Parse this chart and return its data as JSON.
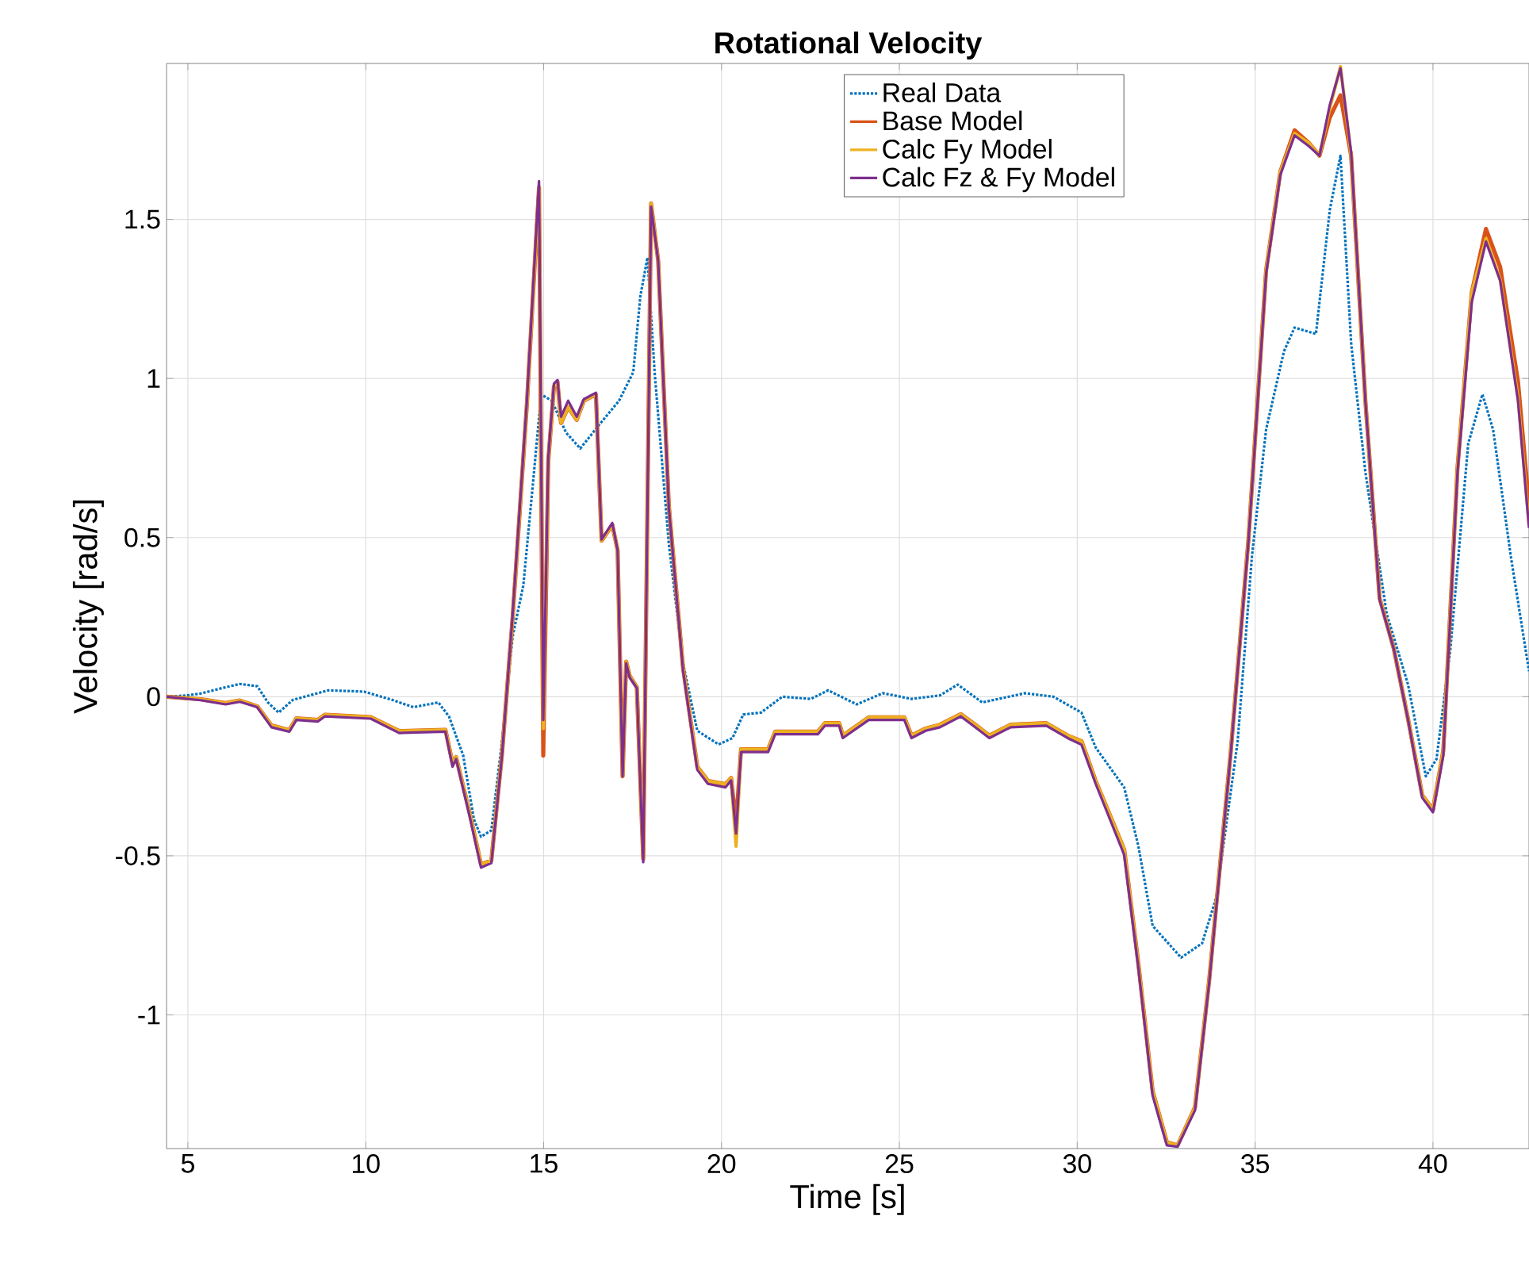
{
  "chart_data": {
    "type": "line",
    "title": "Rotational Velocity",
    "xlabel": "Time [s]",
    "ylabel": "Velocity [rad/s]",
    "xlim": [
      4.4,
      42.7
    ],
    "ylim": [
      -1.42,
      1.99
    ],
    "xticks": [
      5,
      10,
      15,
      20,
      25,
      30,
      35,
      40
    ],
    "yticks": [
      -1,
      -0.5,
      0,
      0.5,
      1,
      1.5
    ],
    "grid": true,
    "legend": "top",
    "series": [
      {
        "name": "Real Data",
        "color": "#0072bd",
        "line_style": "dotted",
        "x": [
          4.4,
          4.96,
          5.36,
          5.96,
          6.46,
          6.95,
          7.25,
          7.55,
          7.95,
          8.95,
          9.95,
          10.74,
          11.34,
          12.04,
          12.34,
          12.74,
          13.04,
          13.24,
          13.53,
          13.83,
          14.13,
          14.43,
          14.73,
          14.93,
          15.23,
          15.63,
          16.03,
          16.53,
          17.12,
          17.52,
          17.72,
          17.92,
          18.12,
          18.52,
          18.92,
          19.32,
          19.92,
          20.31,
          20.61,
          21.11,
          21.71,
          22.51,
          23.0,
          23.8,
          24.54,
          25.34,
          26.14,
          26.64,
          27.33,
          28.53,
          29.33,
          30.12,
          30.52,
          31.32,
          31.72,
          32.12,
          32.92,
          33.51,
          33.91,
          34.51,
          34.91,
          35.31,
          35.81,
          36.11,
          36.71,
          37.1,
          37.4,
          37.7,
          38.1,
          38.7,
          39.3,
          39.8,
          40.1,
          40.49,
          40.99,
          41.39,
          41.69,
          42.19,
          42.7
        ],
        "values": [
          0,
          0.004,
          0.01,
          0.027,
          0.04,
          0.033,
          -0.018,
          -0.05,
          -0.01,
          0.02,
          0.016,
          -0.01,
          -0.033,
          -0.018,
          -0.062,
          -0.185,
          -0.385,
          -0.44,
          -0.42,
          -0.14,
          0.19,
          0.35,
          0.706,
          0.95,
          0.93,
          0.83,
          0.78,
          0.85,
          0.93,
          1.02,
          1.26,
          1.38,
          1.02,
          0.48,
          0.105,
          -0.107,
          -0.15,
          -0.13,
          -0.056,
          -0.05,
          0,
          -0.007,
          0.02,
          -0.024,
          0.011,
          -0.007,
          0.004,
          0.038,
          -0.018,
          0.011,
          0,
          -0.05,
          -0.16,
          -0.285,
          -0.47,
          -0.72,
          -0.82,
          -0.775,
          -0.63,
          -0.14,
          0.44,
          0.84,
          1.085,
          1.16,
          1.14,
          1.53,
          1.7,
          1.11,
          0.706,
          0.26,
          0.038,
          -0.25,
          -0.196,
          0.15,
          0.795,
          0.95,
          0.84,
          0.44,
          0.08
        ]
      },
      {
        "name": "Base Model",
        "color": "#d95319",
        "line_style": "solid",
        "x": [
          4.4,
          5.36,
          6.06,
          6.46,
          6.95,
          7.35,
          7.85,
          8.05,
          8.65,
          8.85,
          10.14,
          10.94,
          12.24,
          12.44,
          12.54,
          12.94,
          13.24,
          13.53,
          13.83,
          14.13,
          14.53,
          14.87,
          14.99,
          15.13,
          15.29,
          15.39,
          15.49,
          15.69,
          15.93,
          16.13,
          16.47,
          16.63,
          16.93,
          17.08,
          17.22,
          17.32,
          17.42,
          17.62,
          17.8,
          18.02,
          18.22,
          18.52,
          18.92,
          19.32,
          19.62,
          20.11,
          20.27,
          20.41,
          20.55,
          21.31,
          21.51,
          22.71,
          22.91,
          23.31,
          23.41,
          24.14,
          25.14,
          25.34,
          25.74,
          26.14,
          26.73,
          27.13,
          27.53,
          28.13,
          29.13,
          29.73,
          30.12,
          30.52,
          31.32,
          31.72,
          32.12,
          32.52,
          32.82,
          33.31,
          33.71,
          34.31,
          34.81,
          35.31,
          35.71,
          36.11,
          36.51,
          36.81,
          37.1,
          37.4,
          37.7,
          38.1,
          38.5,
          38.9,
          39.3,
          39.7,
          40.0,
          40.29,
          40.69,
          41.09,
          41.49,
          41.89,
          42.39,
          42.7
        ],
        "values": [
          0,
          -0.008,
          -0.02,
          -0.012,
          -0.03,
          -0.09,
          -0.105,
          -0.068,
          -0.073,
          -0.057,
          -0.064,
          -0.108,
          -0.104,
          -0.21,
          -0.19,
          -0.375,
          -0.527,
          -0.515,
          -0.18,
          0.25,
          0.92,
          1.6,
          -0.185,
          0.74,
          0.975,
          0.99,
          0.86,
          0.91,
          0.87,
          0.93,
          0.95,
          0.49,
          0.54,
          0.46,
          -0.25,
          0.11,
          0.065,
          0.03,
          -0.51,
          1.55,
          1.37,
          0.6,
          0.09,
          -0.22,
          -0.265,
          -0.275,
          -0.255,
          -0.4,
          -0.165,
          -0.165,
          -0.11,
          -0.11,
          -0.083,
          -0.083,
          -0.122,
          -0.065,
          -0.065,
          -0.122,
          -0.1,
          -0.088,
          -0.055,
          -0.088,
          -0.122,
          -0.088,
          -0.083,
          -0.122,
          -0.14,
          -0.265,
          -0.48,
          -0.84,
          -1.24,
          -1.4,
          -1.41,
          -1.29,
          -0.89,
          -0.18,
          0.49,
          1.34,
          1.65,
          1.78,
          1.74,
          1.7,
          1.82,
          1.89,
          1.7,
          0.93,
          0.31,
          0.15,
          -0.07,
          -0.31,
          -0.355,
          -0.17,
          0.72,
          1.27,
          1.47,
          1.35,
          0.99,
          0.6
        ]
      },
      {
        "name": "Calc Fy Model",
        "color": "#edb120",
        "line_style": "solid",
        "x": [
          4.4,
          5.36,
          6.06,
          6.46,
          6.95,
          7.35,
          7.85,
          8.05,
          8.65,
          8.85,
          10.14,
          10.94,
          12.24,
          12.44,
          12.54,
          12.94,
          13.24,
          13.53,
          13.83,
          14.13,
          14.53,
          14.87,
          14.99,
          15.13,
          15.29,
          15.39,
          15.49,
          15.69,
          15.93,
          16.13,
          16.47,
          16.63,
          16.93,
          17.08,
          17.22,
          17.32,
          17.42,
          17.62,
          17.8,
          18.02,
          18.22,
          18.52,
          18.92,
          19.32,
          19.62,
          20.11,
          20.27,
          20.41,
          20.55,
          21.31,
          21.51,
          22.71,
          22.91,
          23.31,
          23.41,
          24.14,
          25.14,
          25.34,
          25.74,
          26.14,
          26.73,
          27.13,
          27.53,
          28.13,
          29.13,
          29.73,
          30.12,
          30.52,
          31.32,
          31.72,
          32.12,
          32.52,
          32.82,
          33.31,
          33.71,
          34.31,
          34.81,
          35.31,
          35.71,
          36.11,
          36.51,
          36.81,
          37.1,
          37.4,
          37.7,
          38.1,
          38.5,
          38.9,
          39.3,
          39.7,
          40.0,
          40.29,
          40.69,
          41.09,
          41.49,
          41.89,
          42.39,
          42.7
        ],
        "values": [
          0,
          -0.008,
          -0.02,
          -0.012,
          -0.03,
          -0.09,
          -0.105,
          -0.068,
          -0.073,
          -0.057,
          -0.064,
          -0.108,
          -0.104,
          -0.21,
          -0.19,
          -0.375,
          -0.527,
          -0.515,
          -0.18,
          0.25,
          0.92,
          1.6,
          -0.1,
          0.74,
          0.975,
          0.99,
          0.86,
          0.91,
          0.87,
          0.93,
          0.95,
          0.49,
          0.54,
          0.46,
          -0.25,
          0.11,
          0.065,
          0.03,
          -0.51,
          1.55,
          1.37,
          0.6,
          0.09,
          -0.22,
          -0.265,
          -0.275,
          -0.255,
          -0.47,
          -0.165,
          -0.165,
          -0.11,
          -0.11,
          -0.083,
          -0.083,
          -0.122,
          -0.065,
          -0.065,
          -0.122,
          -0.1,
          -0.088,
          -0.055,
          -0.088,
          -0.122,
          -0.088,
          -0.083,
          -0.122,
          -0.14,
          -0.265,
          -0.48,
          -0.84,
          -1.24,
          -1.4,
          -1.41,
          -1.29,
          -0.89,
          -0.18,
          0.49,
          1.34,
          1.65,
          1.77,
          1.74,
          1.7,
          1.85,
          1.98,
          1.7,
          0.93,
          0.31,
          0.15,
          -0.07,
          -0.31,
          -0.355,
          -0.17,
          0.72,
          1.27,
          1.44,
          1.31,
          0.94,
          0.54
        ]
      },
      {
        "name": "Calc Fz & Fy Model",
        "color": "#7e2f8e",
        "line_style": "solid",
        "x": [
          4.4,
          5.36,
          6.06,
          6.46,
          6.95,
          7.35,
          7.85,
          8.05,
          8.65,
          8.85,
          10.14,
          10.94,
          12.24,
          12.44,
          12.54,
          12.94,
          13.24,
          13.53,
          13.83,
          14.13,
          14.53,
          14.87,
          14.99,
          15.13,
          15.29,
          15.39,
          15.49,
          15.69,
          15.93,
          16.13,
          16.47,
          16.63,
          16.93,
          17.08,
          17.22,
          17.32,
          17.42,
          17.62,
          17.8,
          18.02,
          18.22,
          18.52,
          18.92,
          19.32,
          19.62,
          20.11,
          20.27,
          20.41,
          20.55,
          21.31,
          21.51,
          22.71,
          22.91,
          23.31,
          23.41,
          24.14,
          25.14,
          25.34,
          25.74,
          26.14,
          26.73,
          27.13,
          27.53,
          28.13,
          29.13,
          29.73,
          30.12,
          30.52,
          31.32,
          31.72,
          32.12,
          32.52,
          32.82,
          33.31,
          33.71,
          34.31,
          34.81,
          35.31,
          35.71,
          36.11,
          36.51,
          36.81,
          37.1,
          37.4,
          37.7,
          38.1,
          38.5,
          38.9,
          39.3,
          39.7,
          40.0,
          40.29,
          40.69,
          41.09,
          41.49,
          41.89,
          42.39,
          42.7
        ],
        "values": [
          0,
          -0.011,
          -0.024,
          -0.016,
          -0.033,
          -0.096,
          -0.11,
          -0.073,
          -0.078,
          -0.062,
          -0.069,
          -0.114,
          -0.11,
          -0.22,
          -0.196,
          -0.385,
          -0.537,
          -0.523,
          -0.185,
          0.26,
          0.93,
          1.62,
          -0.073,
          0.75,
          0.984,
          0.995,
          0.88,
          0.93,
          0.88,
          0.935,
          0.955,
          0.494,
          0.546,
          0.46,
          -0.25,
          0.105,
          0.06,
          0.027,
          -0.52,
          1.54,
          1.37,
          0.595,
          0.082,
          -0.23,
          -0.274,
          -0.285,
          -0.263,
          -0.43,
          -0.174,
          -0.174,
          -0.118,
          -0.118,
          -0.091,
          -0.091,
          -0.13,
          -0.073,
          -0.073,
          -0.13,
          -0.107,
          -0.096,
          -0.062,
          -0.096,
          -0.13,
          -0.096,
          -0.091,
          -0.13,
          -0.151,
          -0.274,
          -0.497,
          -0.853,
          -1.254,
          -1.41,
          -1.414,
          -1.3,
          -0.898,
          -0.185,
          0.483,
          1.33,
          1.64,
          1.764,
          1.73,
          1.7,
          1.86,
          1.975,
          1.71,
          0.93,
          0.305,
          0.149,
          -0.073,
          -0.318,
          -0.363,
          -0.185,
          0.706,
          1.24,
          1.43,
          1.307,
          0.93,
          0.53
        ]
      }
    ]
  }
}
